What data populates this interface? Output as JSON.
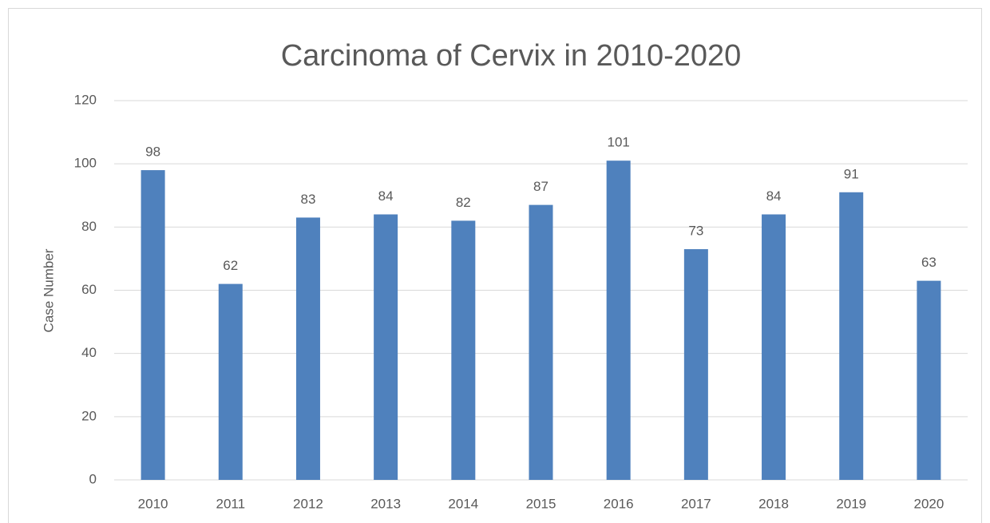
{
  "chart_data": {
    "type": "bar",
    "title": "Carcinoma of Cervix in 2010-2020",
    "y_label": "Case Number",
    "categories": [
      "2010",
      "2011",
      "2012",
      "2013",
      "2014",
      "2015",
      "2016",
      "2017",
      "2018",
      "2019",
      "2020"
    ],
    "values": [
      98,
      62,
      83,
      84,
      82,
      87,
      101,
      73,
      84,
      91,
      63
    ],
    "color": "#4f81bd",
    "ylim": [
      0,
      120
    ],
    "yticks": [
      0,
      20,
      40,
      60,
      80,
      100,
      120
    ],
    "grid": true,
    "data_labels": true
  }
}
